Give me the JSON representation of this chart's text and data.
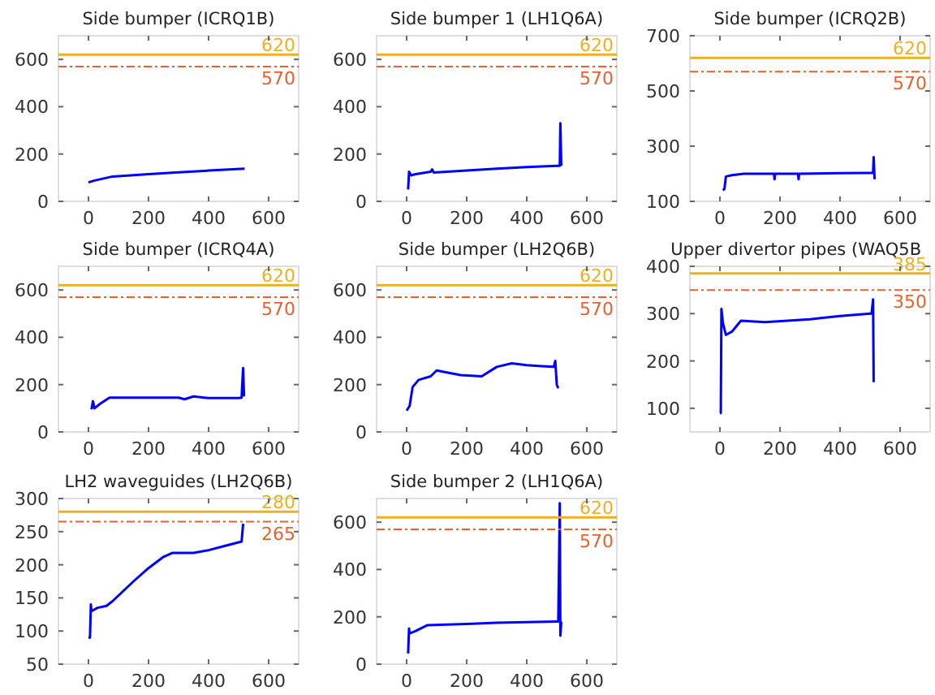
{
  "chart_data": [
    {
      "type": "line",
      "title": "Side bumper (ICRQ1B)",
      "xlim": [
        -100,
        700
      ],
      "xticks": [
        0,
        200,
        400,
        600
      ],
      "ylim": [
        0,
        700
      ],
      "yticks": [
        0,
        200,
        400,
        600
      ],
      "ref_lines": [
        {
          "axis": "y",
          "value": 620,
          "label": "620",
          "color": "#edb120",
          "line_style": "solid"
        },
        {
          "axis": "y",
          "value": 570,
          "label": "570",
          "color": "#e8602c",
          "line_style": "dashdot"
        }
      ],
      "x": [
        0,
        20,
        80,
        200,
        300,
        400,
        520
      ],
      "series": [
        {
          "color": "#0000ff",
          "values": [
            80,
            88,
            105,
            115,
            123,
            130,
            138
          ]
        }
      ]
    },
    {
      "type": "line",
      "title": "Side bumper 1 (LH1Q6A)",
      "xlim": [
        -100,
        700
      ],
      "xticks": [
        0,
        200,
        400,
        600
      ],
      "ylim": [
        0,
        700
      ],
      "yticks": [
        0,
        200,
        400,
        600
      ],
      "ref_lines": [
        {
          "axis": "y",
          "value": 620,
          "label": "620",
          "color": "#edb120",
          "line_style": "solid"
        },
        {
          "axis": "y",
          "value": 570,
          "label": "570",
          "color": "#e8602c",
          "line_style": "dashdot"
        }
      ],
      "x": [
        5,
        8,
        15,
        30,
        80,
        85,
        90,
        200,
        300,
        400,
        500,
        510,
        512,
        515
      ],
      "series": [
        {
          "color": "#0000ff",
          "values": [
            50,
            125,
            110,
            115,
            125,
            135,
            122,
            130,
            138,
            145,
            150,
            150,
            330,
            150
          ]
        }
      ]
    },
    {
      "type": "line",
      "title": "Side bumper (ICRQ2B)",
      "xlim": [
        -100,
        700
      ],
      "xticks": [
        0,
        200,
        400,
        600
      ],
      "ylim": [
        100,
        700
      ],
      "yticks": [
        100,
        300,
        500,
        700
      ],
      "ref_lines": [
        {
          "axis": "y",
          "value": 620,
          "label": "620",
          "color": "#edb120",
          "line_style": "solid"
        },
        {
          "axis": "y",
          "value": 570,
          "label": "570",
          "color": "#e8602c",
          "line_style": "dashdot"
        }
      ],
      "x": [
        10,
        15,
        20,
        40,
        80,
        180,
        182,
        184,
        260,
        262,
        264,
        400,
        500,
        510,
        512,
        515
      ],
      "series": [
        {
          "color": "#0000ff",
          "values": [
            140,
            145,
            190,
            195,
            200,
            200,
            180,
            200,
            200,
            180,
            200,
            202,
            203,
            203,
            260,
            180
          ]
        }
      ]
    },
    {
      "type": "line",
      "title": "Side bumper (ICRQ4A)",
      "xlim": [
        -100,
        700
      ],
      "xticks": [
        0,
        200,
        400,
        600
      ],
      "ylim": [
        0,
        700
      ],
      "yticks": [
        0,
        200,
        400,
        600
      ],
      "ref_lines": [
        {
          "axis": "y",
          "value": 620,
          "label": "620",
          "color": "#edb120",
          "line_style": "solid"
        },
        {
          "axis": "y",
          "value": 570,
          "label": "570",
          "color": "#e8602c",
          "line_style": "dashdot"
        }
      ],
      "x": [
        10,
        15,
        20,
        40,
        70,
        150,
        300,
        320,
        350,
        400,
        500,
        510,
        512,
        515,
        518
      ],
      "series": [
        {
          "color": "#0000ff",
          "values": [
            95,
            130,
            100,
            120,
            145,
            145,
            145,
            138,
            150,
            143,
            143,
            145,
            200,
            270,
            150
          ]
        }
      ]
    },
    {
      "type": "line",
      "title": "Side bumper (LH2Q6B)",
      "xlim": [
        -100,
        700
      ],
      "xticks": [
        0,
        200,
        400,
        600
      ],
      "ylim": [
        0,
        700
      ],
      "yticks": [
        0,
        200,
        400,
        600
      ],
      "ref_lines": [
        {
          "axis": "y",
          "value": 620,
          "label": "620",
          "color": "#edb120",
          "line_style": "solid"
        },
        {
          "axis": "y",
          "value": 570,
          "label": "570",
          "color": "#e8602c",
          "line_style": "dashdot"
        }
      ],
      "x": [
        0,
        10,
        20,
        40,
        80,
        100,
        120,
        180,
        250,
        300,
        350,
        400,
        450,
        490,
        495,
        500,
        505
      ],
      "series": [
        {
          "color": "#0000ff",
          "values": [
            90,
            110,
            190,
            220,
            235,
            260,
            255,
            240,
            235,
            275,
            290,
            282,
            278,
            275,
            300,
            200,
            185
          ]
        }
      ]
    },
    {
      "type": "line",
      "title": "Upper divertor pipes (WAQ5B",
      "xlim": [
        -100,
        700
      ],
      "xticks": [
        0,
        200,
        400,
        600
      ],
      "ylim": [
        50,
        400
      ],
      "yticks": [
        100,
        200,
        300,
        400
      ],
      "ref_lines": [
        {
          "axis": "y",
          "value": 385,
          "label": "385",
          "color": "#edb120",
          "line_style": "solid"
        },
        {
          "axis": "y",
          "value": 350,
          "label": "350",
          "color": "#e8602c",
          "line_style": "dashdot"
        }
      ],
      "x": [
        0,
        3,
        5,
        10,
        20,
        40,
        70,
        150,
        300,
        400,
        500,
        505,
        510,
        512
      ],
      "series": [
        {
          "color": "#0000ff",
          "values": [
            90,
            90,
            310,
            280,
            255,
            262,
            285,
            282,
            288,
            295,
            300,
            300,
            330,
            155
          ]
        }
      ]
    },
    {
      "type": "line",
      "title": "LH2 waveguides (LH2Q6B)",
      "xlim": [
        -100,
        700
      ],
      "xticks": [
        0,
        200,
        400,
        600
      ],
      "ylim": [
        50,
        300
      ],
      "yticks": [
        50,
        100,
        150,
        200,
        250,
        300
      ],
      "ref_lines": [
        {
          "axis": "y",
          "value": 280,
          "label": "280",
          "color": "#edb120",
          "line_style": "solid"
        },
        {
          "axis": "y",
          "value": 265,
          "label": "265",
          "color": "#e8602c",
          "line_style": "dashdot"
        }
      ],
      "x": [
        0,
        5,
        8,
        10,
        30,
        60,
        80,
        150,
        200,
        250,
        280,
        350,
        400,
        450,
        510,
        515
      ],
      "series": [
        {
          "color": "#0000ff",
          "values": [
            90,
            90,
            140,
            130,
            135,
            138,
            145,
            175,
            195,
            212,
            218,
            218,
            222,
            228,
            235,
            262
          ]
        }
      ]
    },
    {
      "type": "line",
      "title": "Side bumper 2 (LH1Q6A)",
      "xlim": [
        -100,
        700
      ],
      "xticks": [
        0,
        200,
        400,
        600
      ],
      "ylim": [
        0,
        700
      ],
      "yticks": [
        0,
        200,
        400,
        600
      ],
      "ref_lines": [
        {
          "axis": "y",
          "value": 620,
          "label": "620",
          "color": "#edb120",
          "line_style": "solid"
        },
        {
          "axis": "y",
          "value": 570,
          "label": "570",
          "color": "#e8602c",
          "line_style": "dashdot"
        }
      ],
      "x": [
        5,
        8,
        10,
        30,
        70,
        200,
        300,
        400,
        500,
        505,
        510,
        512,
        515
      ],
      "series": [
        {
          "color": "#0000ff",
          "values": [
            45,
            150,
            130,
            140,
            165,
            170,
            175,
            178,
            180,
            180,
            680,
            120,
            180
          ]
        }
      ]
    }
  ]
}
